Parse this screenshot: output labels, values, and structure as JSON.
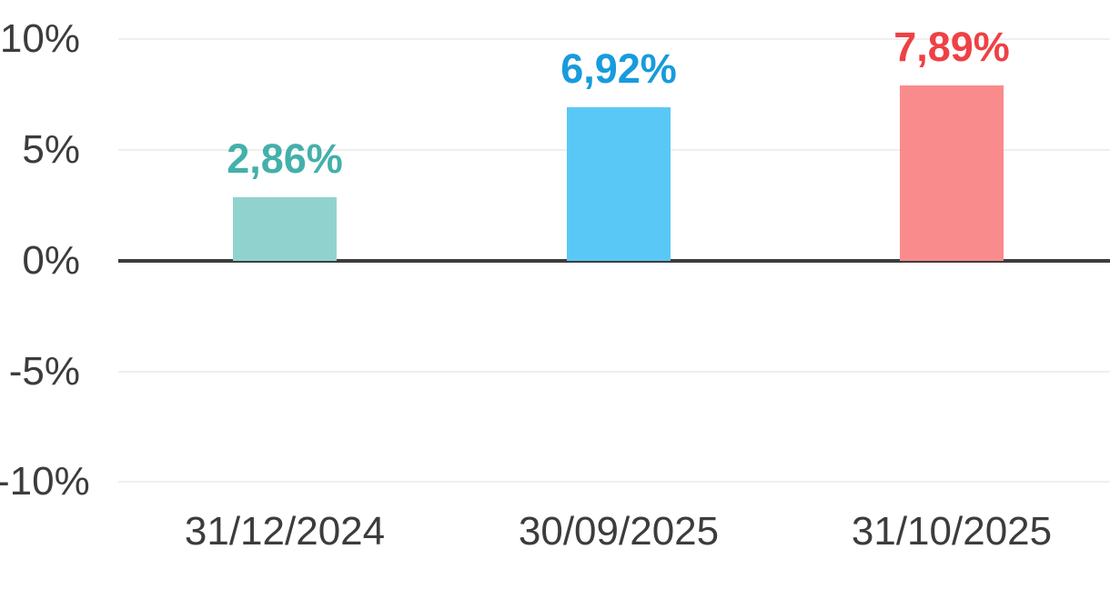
{
  "chart_data": {
    "type": "bar",
    "title": "",
    "xlabel": "",
    "ylabel": "",
    "categories": [
      "31/12/2024",
      "30/09/2025",
      "31/10/2025"
    ],
    "values": [
      2.86,
      6.92,
      7.89
    ],
    "value_labels": [
      "2,86%",
      "6,92%",
      "7,89%"
    ],
    "bar_colors": [
      "#90d3ce",
      "#5ac8f6",
      "#f98b8d"
    ],
    "value_label_colors": [
      "#44b0ab",
      "#189bdd",
      "#ee4145"
    ],
    "ylim": [
      -10,
      10
    ],
    "yticks": [
      10,
      5,
      0,
      -5,
      -10
    ],
    "ytick_labels": [
      "10%",
      "5%",
      "0%",
      "-5%",
      "-10%"
    ],
    "grid": "horizontal",
    "legend": "none",
    "background_color": "#ffffff",
    "axis_line_color": "#3d3d3d",
    "gridline_color": "#efefef",
    "tick_label_color": "#3c3c3c"
  }
}
